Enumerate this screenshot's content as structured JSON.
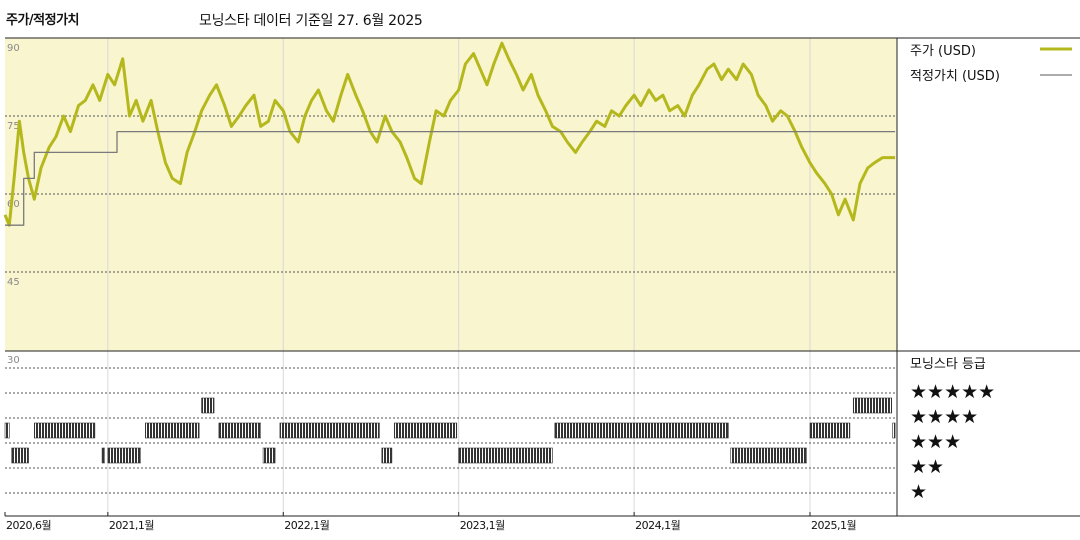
{
  "title": "주가/적정가치",
  "subtitle": "모닝스타 데이터 기준일 27. 6월 2025",
  "colors": {
    "price": "#b5b81c",
    "fair_value": "#7a7a7a",
    "plot_bg": "#f8f5cf",
    "rating_bars": "#333333"
  },
  "legend": {
    "price": "주가 (USD)",
    "fair_value": "적정가치 (USD)"
  },
  "rating_title": "모닝스타 등급",
  "rating_levels": [
    "★★★★★",
    "★★★★",
    "★★★",
    "★★",
    "★"
  ],
  "chart_data": {
    "type": "line",
    "ylim": [
      30,
      90
    ],
    "yticks": [
      "90",
      "75",
      "60",
      "45",
      "30"
    ],
    "xlim": [
      "2020-06-01",
      "2025-07-01"
    ],
    "xticks": [
      {
        "label": "2020,6월",
        "date": "2020-06-01"
      },
      {
        "label": "2021,1월",
        "date": "2021-01-01"
      },
      {
        "label": "2022,1월",
        "date": "2022-01-01"
      },
      {
        "label": "2023,1월",
        "date": "2023-01-01"
      },
      {
        "label": "2024,1월",
        "date": "2024-01-01"
      },
      {
        "label": "2025,1월",
        "date": "2025-01-01"
      }
    ],
    "series": [
      {
        "name": "주가 (USD)",
        "points": [
          [
            "2020-06-01",
            56
          ],
          [
            "2020-06-10",
            54
          ],
          [
            "2020-06-20",
            63
          ],
          [
            "2020-07-01",
            74
          ],
          [
            "2020-07-10",
            68
          ],
          [
            "2020-07-20",
            63
          ],
          [
            "2020-08-01",
            59
          ],
          [
            "2020-08-15",
            65
          ],
          [
            "2020-09-01",
            69
          ],
          [
            "2020-09-15",
            71
          ],
          [
            "2020-10-01",
            75
          ],
          [
            "2020-10-15",
            72
          ],
          [
            "2020-11-01",
            77
          ],
          [
            "2020-11-15",
            78
          ],
          [
            "2020-12-01",
            81
          ],
          [
            "2020-12-15",
            78
          ],
          [
            "2021-01-01",
            83
          ],
          [
            "2021-01-15",
            81
          ],
          [
            "2021-02-01",
            86
          ],
          [
            "2021-02-15",
            75
          ],
          [
            "2021-03-01",
            78
          ],
          [
            "2021-03-15",
            74
          ],
          [
            "2021-04-01",
            78
          ],
          [
            "2021-04-15",
            72
          ],
          [
            "2021-05-01",
            66
          ],
          [
            "2021-05-15",
            63
          ],
          [
            "2021-06-01",
            62
          ],
          [
            "2021-06-15",
            68
          ],
          [
            "2021-07-01",
            72
          ],
          [
            "2021-07-15",
            76
          ],
          [
            "2021-08-01",
            79
          ],
          [
            "2021-08-15",
            81
          ],
          [
            "2021-09-01",
            77
          ],
          [
            "2021-09-15",
            73
          ],
          [
            "2021-10-01",
            75
          ],
          [
            "2021-10-15",
            77
          ],
          [
            "2021-11-01",
            79
          ],
          [
            "2021-11-15",
            73
          ],
          [
            "2021-12-01",
            74
          ],
          [
            "2021-12-15",
            78
          ],
          [
            "2022-01-01",
            76
          ],
          [
            "2022-01-15",
            72
          ],
          [
            "2022-02-01",
            70
          ],
          [
            "2022-02-15",
            75
          ],
          [
            "2022-03-01",
            78
          ],
          [
            "2022-03-15",
            80
          ],
          [
            "2022-04-01",
            76
          ],
          [
            "2022-04-15",
            74
          ],
          [
            "2022-05-01",
            79
          ],
          [
            "2022-05-15",
            83
          ],
          [
            "2022-06-01",
            79
          ],
          [
            "2022-06-15",
            76
          ],
          [
            "2022-07-01",
            72
          ],
          [
            "2022-07-15",
            70
          ],
          [
            "2022-08-01",
            75
          ],
          [
            "2022-08-15",
            72
          ],
          [
            "2022-09-01",
            70
          ],
          [
            "2022-09-15",
            67
          ],
          [
            "2022-10-01",
            63
          ],
          [
            "2022-10-15",
            62
          ],
          [
            "2022-11-01",
            70
          ],
          [
            "2022-11-15",
            76
          ],
          [
            "2022-12-01",
            75
          ],
          [
            "2022-12-15",
            78
          ],
          [
            "2023-01-01",
            80
          ],
          [
            "2023-01-15",
            85
          ],
          [
            "2023-02-01",
            87
          ],
          [
            "2023-02-15",
            84
          ],
          [
            "2023-03-01",
            81
          ],
          [
            "2023-03-15",
            85
          ],
          [
            "2023-04-01",
            89
          ],
          [
            "2023-04-15",
            86
          ],
          [
            "2023-05-01",
            83
          ],
          [
            "2023-05-15",
            80
          ],
          [
            "2023-06-01",
            83
          ],
          [
            "2023-06-15",
            79
          ],
          [
            "2023-07-01",
            76
          ],
          [
            "2023-07-15",
            73
          ],
          [
            "2023-08-01",
            72
          ],
          [
            "2023-08-15",
            70
          ],
          [
            "2023-09-01",
            68
          ],
          [
            "2023-09-15",
            70
          ],
          [
            "2023-10-01",
            72
          ],
          [
            "2023-10-15",
            74
          ],
          [
            "2023-11-01",
            73
          ],
          [
            "2023-11-15",
            76
          ],
          [
            "2023-12-01",
            75
          ],
          [
            "2023-12-15",
            77
          ],
          [
            "2024-01-01",
            79
          ],
          [
            "2024-01-15",
            77
          ],
          [
            "2024-02-01",
            80
          ],
          [
            "2024-02-15",
            78
          ],
          [
            "2024-03-01",
            79
          ],
          [
            "2024-03-15",
            76
          ],
          [
            "2024-04-01",
            77
          ],
          [
            "2024-04-15",
            75
          ],
          [
            "2024-05-01",
            79
          ],
          [
            "2024-05-15",
            81
          ],
          [
            "2024-06-01",
            84
          ],
          [
            "2024-06-15",
            85
          ],
          [
            "2024-07-01",
            82
          ],
          [
            "2024-07-15",
            84
          ],
          [
            "2024-08-01",
            82
          ],
          [
            "2024-08-15",
            85
          ],
          [
            "2024-09-01",
            83
          ],
          [
            "2024-09-15",
            79
          ],
          [
            "2024-10-01",
            77
          ],
          [
            "2024-10-15",
            74
          ],
          [
            "2024-11-01",
            76
          ],
          [
            "2024-11-15",
            75
          ],
          [
            "2024-12-01",
            72
          ],
          [
            "2024-12-15",
            69
          ],
          [
            "2025-01-01",
            66
          ],
          [
            "2025-01-15",
            64
          ],
          [
            "2025-02-01",
            62
          ],
          [
            "2025-02-15",
            60
          ],
          [
            "2025-03-01",
            56
          ],
          [
            "2025-03-15",
            59
          ],
          [
            "2025-04-01",
            55
          ],
          [
            "2025-04-15",
            62
          ],
          [
            "2025-05-01",
            65
          ],
          [
            "2025-05-15",
            66
          ],
          [
            "2025-06-01",
            67
          ],
          [
            "2025-06-27",
            67
          ]
        ]
      },
      {
        "name": "적정가치 (USD)",
        "points": [
          [
            "2020-06-01",
            54
          ],
          [
            "2020-07-10",
            54
          ],
          [
            "2020-07-10",
            63
          ],
          [
            "2020-08-01",
            63
          ],
          [
            "2020-08-01",
            68
          ],
          [
            "2021-01-20",
            68
          ],
          [
            "2021-01-20",
            72
          ],
          [
            "2025-06-27",
            72
          ]
        ]
      }
    ],
    "ratings": {
      "levels": [
        5,
        4,
        3,
        2,
        1
      ],
      "periods": [
        {
          "rating": 3,
          "start": "2020-06-01",
          "end": "2020-06-10"
        },
        {
          "rating": 2,
          "start": "2020-06-15",
          "end": "2020-07-20"
        },
        {
          "rating": 3,
          "start": "2020-08-01",
          "end": "2020-12-05"
        },
        {
          "rating": 2,
          "start": "2020-12-20",
          "end": "2020-12-25"
        },
        {
          "rating": 2,
          "start": "2021-01-01",
          "end": "2021-03-10"
        },
        {
          "rating": 3,
          "start": "2021-03-20",
          "end": "2021-07-10"
        },
        {
          "rating": 4,
          "start": "2021-07-15",
          "end": "2021-08-10"
        },
        {
          "rating": 3,
          "start": "2021-08-20",
          "end": "2021-11-15"
        },
        {
          "rating": 2,
          "start": "2021-11-20",
          "end": "2021-12-15"
        },
        {
          "rating": 3,
          "start": "2021-12-25",
          "end": "2022-07-20"
        },
        {
          "rating": 2,
          "start": "2022-07-25",
          "end": "2022-08-15"
        },
        {
          "rating": 3,
          "start": "2022-08-20",
          "end": "2022-12-28"
        },
        {
          "rating": 2,
          "start": "2023-01-01",
          "end": "2023-07-15"
        },
        {
          "rating": 3,
          "start": "2023-07-20",
          "end": "2024-07-15"
        },
        {
          "rating": 2,
          "start": "2024-07-20",
          "end": "2024-12-25"
        },
        {
          "rating": 3,
          "start": "2025-01-01",
          "end": "2025-03-25"
        },
        {
          "rating": 4,
          "start": "2025-04-01",
          "end": "2025-06-20"
        },
        {
          "rating": 3,
          "start": "2025-06-22",
          "end": "2025-06-27"
        }
      ]
    }
  }
}
